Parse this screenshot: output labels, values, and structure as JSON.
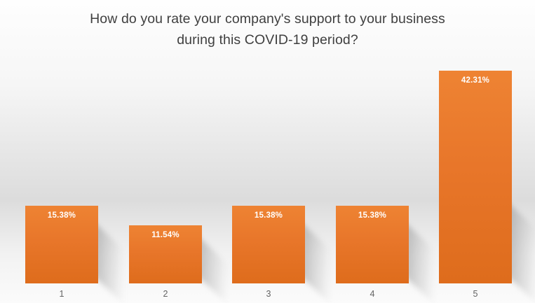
{
  "chart_data": {
    "type": "bar",
    "title": "How do you rate your company's support to your business during this COVID-19 period?",
    "title_lines": [
      "How do you rate your company's support to your business",
      "during this COVID-19 period?"
    ],
    "categories": [
      "1",
      "2",
      "3",
      "4",
      "5"
    ],
    "values": [
      15.38,
      11.54,
      15.38,
      15.38,
      42.31
    ],
    "data_labels": [
      "15.38%",
      "11.54%",
      "15.38%",
      "15.38%",
      "42.31%"
    ],
    "xlabel": "",
    "ylabel": "",
    "ylim": [
      0,
      45
    ],
    "grid": false,
    "legend": false,
    "axis_line": false,
    "bar_color": "#E8762A",
    "bar_color_top": "#EE8333",
    "bar_color_bottom": "#DE6C1C",
    "data_label_color": "#FFFFFF",
    "tick_label_color": "#636363",
    "title_color": "#3F3F3F",
    "background_gray": "#DCDCDC"
  }
}
